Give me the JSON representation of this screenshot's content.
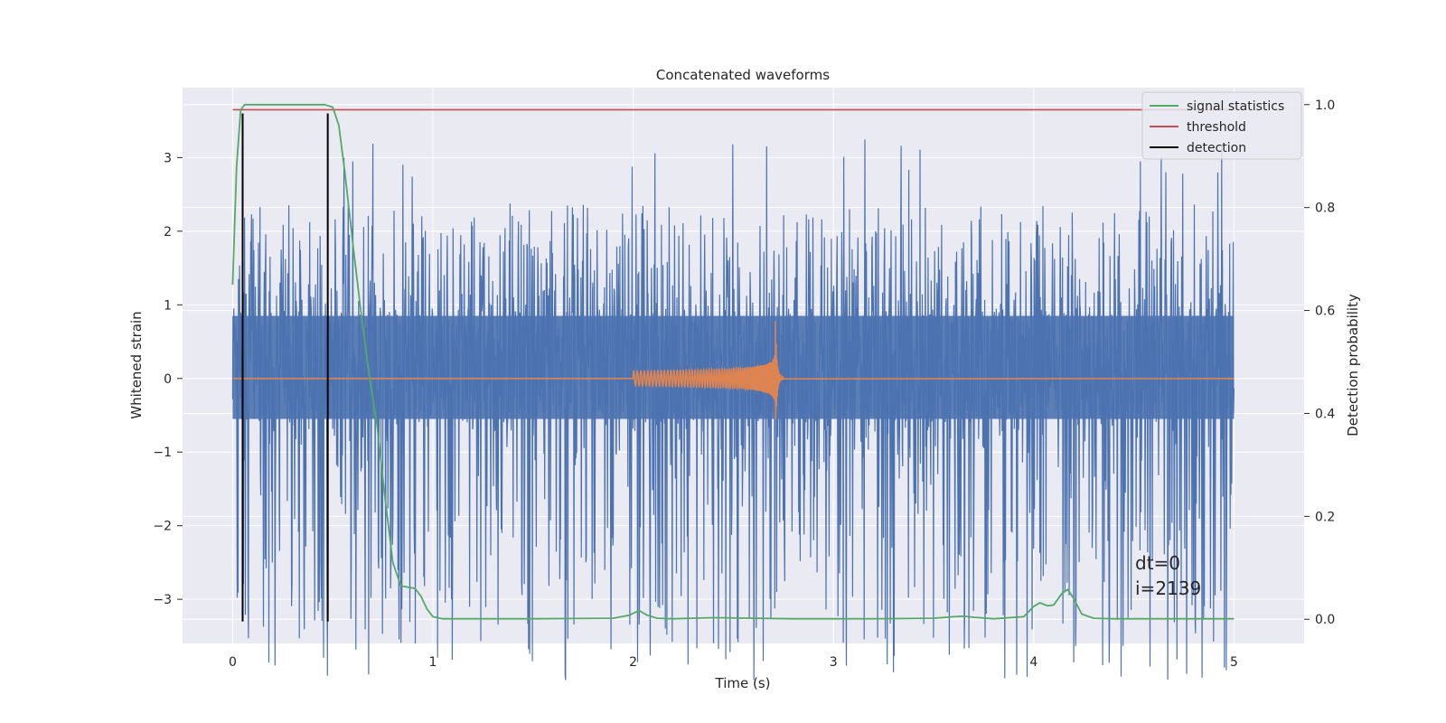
{
  "chart_data": {
    "type": "line",
    "title": "Concatenated waveforms",
    "xlabel": "Time (s)",
    "ylabel": "Whitened strain",
    "y2label": "Detection probability",
    "xlim": [
      -0.25,
      5.35
    ],
    "ylim": [
      -3.6,
      3.95
    ],
    "y2lim": [
      -0.047,
      1.033
    ],
    "xticks": [
      0,
      1,
      2,
      3,
      4,
      5
    ],
    "yticks": [
      -3,
      -2,
      -1,
      0,
      1,
      2,
      3
    ],
    "y2ticks": [
      0.0,
      0.2,
      0.4,
      0.6,
      0.8,
      1.0
    ],
    "xtick_labels": [
      "0",
      "1",
      "2",
      "3",
      "4",
      "5"
    ],
    "ytick_labels": [
      "−3",
      "−2",
      "−1",
      "0",
      "1",
      "2",
      "3"
    ],
    "y2tick_labels": [
      "0.0",
      "0.2",
      "0.4",
      "0.6",
      "0.8",
      "1.0"
    ],
    "grid": true,
    "legend_position": "top-right",
    "legend": [
      {
        "label": "signal statistics",
        "color": "#55a868"
      },
      {
        "label": "threshold",
        "color": "#c44e52"
      },
      {
        "label": "detection",
        "color": "#000000"
      }
    ],
    "colors": {
      "noise": "#4c72b0",
      "chirp": "#dd8452",
      "statistics": "#55a868",
      "threshold": "#c44e52",
      "detection": "#000000",
      "background": "#eaeaf2"
    },
    "series": [
      {
        "kind": "noise",
        "axis": "left",
        "x_range": [
          0,
          5
        ],
        "core_band": [
          -0.55,
          0.85
        ],
        "peak_envelope": [
          -3.2,
          3.3
        ]
      },
      {
        "kind": "chirp",
        "axis": "left",
        "x_range": [
          2.0,
          2.75
        ],
        "peak_time": 2.71,
        "peak_amplitude": 0.78,
        "start_amplitude": 0.1
      },
      {
        "name": "signal statistics",
        "axis": "right",
        "x": [
          0.0,
          0.02,
          0.04,
          0.06,
          0.08,
          0.12,
          0.2,
          0.3,
          0.4,
          0.46,
          0.5,
          0.53,
          0.56,
          0.6,
          0.64,
          0.68,
          0.72,
          0.76,
          0.8,
          0.84,
          0.88,
          0.91,
          0.94,
          0.97,
          1.0,
          1.05,
          1.2,
          1.5,
          1.9,
          1.98,
          2.03,
          2.07,
          2.12,
          2.2,
          2.4,
          2.8,
          3.2,
          3.5,
          3.6,
          3.65,
          3.7,
          3.8,
          3.95,
          4.0,
          4.03,
          4.07,
          4.1,
          4.14,
          4.17,
          4.2,
          4.24,
          4.3,
          4.4,
          4.7,
          5.0
        ],
        "y": [
          0.65,
          0.88,
          0.99,
          1.0,
          1.0,
          1.0,
          1.0,
          1.0,
          1.0,
          1.0,
          0.995,
          0.96,
          0.87,
          0.73,
          0.6,
          0.48,
          0.38,
          0.24,
          0.11,
          0.065,
          0.062,
          0.06,
          0.045,
          0.02,
          0.005,
          0.001,
          0.001,
          0.001,
          0.002,
          0.008,
          0.017,
          0.008,
          0.002,
          0.001,
          0.003,
          0.001,
          0.001,
          0.002,
          0.005,
          0.006,
          0.004,
          0.001,
          0.005,
          0.025,
          0.032,
          0.026,
          0.028,
          0.05,
          0.058,
          0.04,
          0.01,
          0.002,
          0.001,
          0.001,
          0.001
        ]
      },
      {
        "name": "threshold",
        "axis": "right",
        "x": [
          0,
          5
        ],
        "y": [
          0.99,
          0.99
        ]
      },
      {
        "name": "detection",
        "axis": "left",
        "x": [
          0.05,
          0.475
        ],
        "y_range": [
          -3.3,
          3.6
        ]
      }
    ],
    "annotations": [
      "dt=0",
      "i=2139"
    ]
  }
}
